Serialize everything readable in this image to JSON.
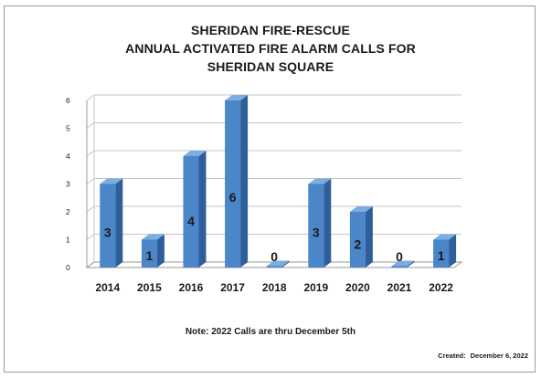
{
  "chart_data": {
    "type": "bar",
    "title_lines": [
      "SHERIDAN FIRE-RESCUE",
      "ANNUAL ACTIVATED FIRE ALARM CALLS FOR",
      "SHERIDAN SQUARE"
    ],
    "categories": [
      "2014",
      "2015",
      "2016",
      "2017",
      "2018",
      "2019",
      "2020",
      "2021",
      "2022"
    ],
    "values": [
      3,
      1,
      4,
      6,
      0,
      3,
      2,
      0,
      1
    ],
    "data_labels": [
      "3",
      "1",
      "4",
      "6",
      "0",
      "3",
      "2",
      "0",
      "1"
    ],
    "ylim": [
      0,
      6
    ],
    "y_ticks": [
      "0",
      "1",
      "2",
      "3",
      "4",
      "5",
      "6"
    ],
    "xlabel": "",
    "ylabel": "",
    "grid": true,
    "legend": "none",
    "bar_style": "3d",
    "colors": {
      "bar_front": "#4a86c8",
      "bar_side": "#2f5f9a",
      "bar_top": "#7aaee0",
      "grid": "#c4c4c4"
    }
  },
  "note": "Note:  2022 Calls are thru December 5th",
  "created_label": "Created:",
  "created_date": "December 6, 2022"
}
